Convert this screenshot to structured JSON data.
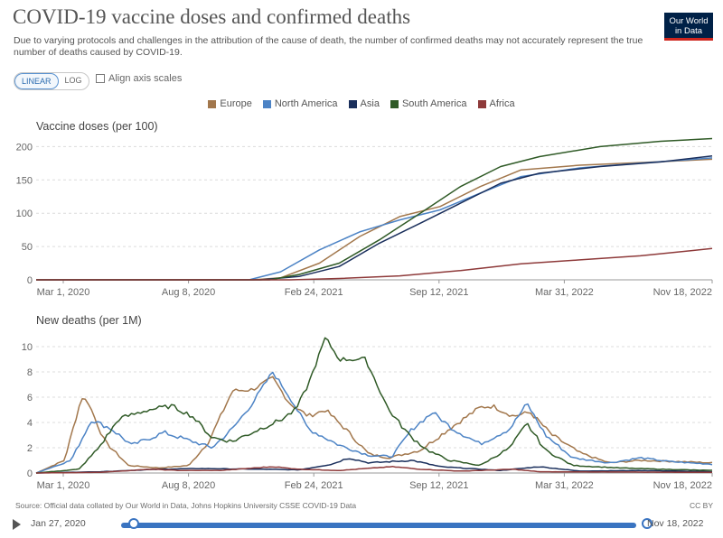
{
  "header": {
    "title": "COVID-19 vaccine doses and confirmed deaths",
    "subtitle": "Due to varying protocols and challenges in the attribution of the cause of death, the number of confirmed deaths may not accurately represent the true number of deaths caused by COVID-19.",
    "logo_line1": "Our World",
    "logo_line2": "in Data"
  },
  "controls": {
    "linear_label": "LINEAR",
    "log_label": "LOG",
    "align_label": "Align axis scales"
  },
  "colors": {
    "Europe": "#a2774c",
    "North America": "#4c83c5",
    "Asia": "#1a2f5c",
    "South America": "#2f5a26",
    "Africa": "#8e3a3a"
  },
  "legend": [
    "Europe",
    "North America",
    "Asia",
    "South America",
    "Africa"
  ],
  "chart_data": [
    {
      "type": "line",
      "title": "Vaccine doses (per 100)",
      "x_tick_labels": [
        "Mar 1, 2020",
        "Aug 8, 2020",
        "Feb 24, 2021",
        "Sep 12, 2021",
        "Mar 31, 2022",
        "Nov 18, 2022"
      ],
      "y_ticks": [
        0,
        50,
        100,
        150,
        200
      ],
      "ylim": [
        0,
        210
      ],
      "xlim": [
        "2020-01-27",
        "2022-11-18"
      ],
      "grid": true,
      "series": [
        {
          "name": "Europe",
          "points": [
            [
              "2020-12-20",
              0
            ],
            [
              "2021-02-01",
              3
            ],
            [
              "2021-04-01",
              25
            ],
            [
              "2021-06-01",
              65
            ],
            [
              "2021-08-01",
              95
            ],
            [
              "2021-10-01",
              110
            ],
            [
              "2021-12-01",
              140
            ],
            [
              "2022-02-01",
              165
            ],
            [
              "2022-05-01",
              172
            ],
            [
              "2022-08-01",
              176
            ],
            [
              "2022-11-18",
              181
            ]
          ]
        },
        {
          "name": "North America",
          "points": [
            [
              "2020-12-15",
              0
            ],
            [
              "2021-02-01",
              12
            ],
            [
              "2021-04-01",
              45
            ],
            [
              "2021-06-01",
              72
            ],
            [
              "2021-08-01",
              90
            ],
            [
              "2021-10-01",
              105
            ],
            [
              "2021-12-01",
              130
            ],
            [
              "2022-02-01",
              155
            ],
            [
              "2022-05-01",
              168
            ],
            [
              "2022-08-01",
              175
            ],
            [
              "2022-11-18",
              183
            ]
          ]
        },
        {
          "name": "Asia",
          "points": [
            [
              "2021-01-01",
              0
            ],
            [
              "2021-03-01",
              5
            ],
            [
              "2021-05-01",
              20
            ],
            [
              "2021-07-01",
              55
            ],
            [
              "2021-09-01",
              85
            ],
            [
              "2021-11-01",
              115
            ],
            [
              "2022-01-01",
              145
            ],
            [
              "2022-03-01",
              160
            ],
            [
              "2022-06-01",
              170
            ],
            [
              "2022-09-01",
              177
            ],
            [
              "2022-11-18",
              186
            ]
          ]
        },
        {
          "name": "South America",
          "points": [
            [
              "2021-01-15",
              0
            ],
            [
              "2021-03-01",
              8
            ],
            [
              "2021-05-01",
              25
            ],
            [
              "2021-07-01",
              60
            ],
            [
              "2021-09-01",
              100
            ],
            [
              "2021-11-01",
              140
            ],
            [
              "2022-01-01",
              170
            ],
            [
              "2022-03-01",
              185
            ],
            [
              "2022-06-01",
              200
            ],
            [
              "2022-09-01",
              208
            ],
            [
              "2022-11-18",
              212
            ]
          ]
        },
        {
          "name": "Africa",
          "points": [
            [
              "2021-02-15",
              0
            ],
            [
              "2021-05-01",
              2
            ],
            [
              "2021-08-01",
              6
            ],
            [
              "2021-11-01",
              14
            ],
            [
              "2022-02-01",
              24
            ],
            [
              "2022-05-01",
              30
            ],
            [
              "2022-08-01",
              36
            ],
            [
              "2022-11-18",
              47
            ]
          ]
        }
      ]
    },
    {
      "type": "line",
      "title": "New deaths (per 1M)",
      "x_tick_labels": [
        "Mar 1, 2020",
        "Aug 8, 2020",
        "Feb 24, 2021",
        "Sep 12, 2021",
        "Mar 31, 2022",
        "Nov 18, 2022"
      ],
      "y_ticks": [
        0,
        2,
        4,
        6,
        8,
        10
      ],
      "ylim": [
        0,
        11
      ],
      "xlim": [
        "2020-01-27",
        "2022-11-18"
      ],
      "grid": true,
      "series": [
        {
          "name": "Europe",
          "points": [
            [
              "2020-01-27",
              0
            ],
            [
              "2020-03-10",
              1.0
            ],
            [
              "2020-04-05",
              6.0
            ],
            [
              "2020-04-15",
              5.6
            ],
            [
              "2020-05-10",
              2.5
            ],
            [
              "2020-06-15",
              0.6
            ],
            [
              "2020-08-01",
              0.4
            ],
            [
              "2020-09-15",
              0.6
            ],
            [
              "2020-10-15",
              2.5
            ],
            [
              "2020-11-20",
              6.5
            ],
            [
              "2020-12-20",
              6.6
            ],
            [
              "2021-01-20",
              7.5
            ],
            [
              "2021-02-15",
              5.5
            ],
            [
              "2021-03-15",
              4.5
            ],
            [
              "2021-04-10",
              5.0
            ],
            [
              "2021-05-10",
              3.5
            ],
            [
              "2021-06-15",
              1.5
            ],
            [
              "2021-07-15",
              1.2
            ],
            [
              "2021-09-01",
              1.8
            ],
            [
              "2021-10-15",
              3.5
            ],
            [
              "2021-12-01",
              5.2
            ],
            [
              "2021-12-20",
              5.3
            ],
            [
              "2022-01-20",
              4.5
            ],
            [
              "2022-02-15",
              4.8
            ],
            [
              "2022-03-20",
              3.0
            ],
            [
              "2022-05-01",
              1.6
            ],
            [
              "2022-06-15",
              0.8
            ],
            [
              "2022-08-01",
              1.0
            ],
            [
              "2022-10-01",
              0.9
            ],
            [
              "2022-11-18",
              0.8
            ]
          ]
        },
        {
          "name": "North America",
          "points": [
            [
              "2020-01-27",
              0
            ],
            [
              "2020-03-20",
              1.0
            ],
            [
              "2020-04-20",
              4.2
            ],
            [
              "2020-05-20",
              3.5
            ],
            [
              "2020-06-20",
              2.2
            ],
            [
              "2020-08-08",
              3.2
            ],
            [
              "2020-09-20",
              2.5
            ],
            [
              "2020-10-20",
              2.0
            ],
            [
              "2020-11-20",
              3.5
            ],
            [
              "2020-12-20",
              5.5
            ],
            [
              "2021-01-20",
              8.0
            ],
            [
              "2021-02-15",
              6.0
            ],
            [
              "2021-03-15",
              3.5
            ],
            [
              "2021-05-01",
              2.2
            ],
            [
              "2021-06-15",
              1.4
            ],
            [
              "2021-07-20",
              1.3
            ],
            [
              "2021-08-20",
              3.5
            ],
            [
              "2021-09-20",
              4.8
            ],
            [
              "2021-10-20",
              3.5
            ],
            [
              "2021-12-01",
              2.3
            ],
            [
              "2022-01-15",
              3.5
            ],
            [
              "2022-02-10",
              5.5
            ],
            [
              "2022-03-10",
              3.0
            ],
            [
              "2022-04-20",
              1.2
            ],
            [
              "2022-06-15",
              0.8
            ],
            [
              "2022-08-01",
              1.2
            ],
            [
              "2022-09-15",
              0.9
            ],
            [
              "2022-11-18",
              0.7
            ]
          ]
        },
        {
          "name": "Asia",
          "points": [
            [
              "2020-01-27",
              0
            ],
            [
              "2020-05-01",
              0.1
            ],
            [
              "2020-08-01",
              0.3
            ],
            [
              "2020-10-01",
              0.35
            ],
            [
              "2021-01-01",
              0.3
            ],
            [
              "2021-03-01",
              0.25
            ],
            [
              "2021-04-20",
              0.7
            ],
            [
              "2021-05-15",
              1.2
            ],
            [
              "2021-06-15",
              0.8
            ],
            [
              "2021-08-20",
              1.0
            ],
            [
              "2021-10-01",
              0.5
            ],
            [
              "2022-01-01",
              0.2
            ],
            [
              "2022-03-01",
              0.5
            ],
            [
              "2022-05-01",
              0.15
            ],
            [
              "2022-08-01",
              0.2
            ],
            [
              "2022-11-18",
              0.1
            ]
          ]
        },
        {
          "name": "South America",
          "points": [
            [
              "2020-01-27",
              0
            ],
            [
              "2020-04-01",
              0.3
            ],
            [
              "2020-05-01",
              2.0
            ],
            [
              "2020-06-01",
              4.3
            ],
            [
              "2020-07-15",
              5.0
            ],
            [
              "2020-08-20",
              5.3
            ],
            [
              "2020-09-20",
              4.5
            ],
            [
              "2020-10-20",
              2.8
            ],
            [
              "2020-11-20",
              2.5
            ],
            [
              "2021-01-01",
              3.5
            ],
            [
              "2021-02-01",
              4.2
            ],
            [
              "2021-02-24",
              5.0
            ],
            [
              "2021-03-15",
              7.0
            ],
            [
              "2021-04-10",
              10.7
            ],
            [
              "2021-05-01",
              9.0
            ],
            [
              "2021-06-10",
              9.0
            ],
            [
              "2021-07-15",
              5.0
            ],
            [
              "2021-08-15",
              3.0
            ],
            [
              "2021-09-12",
              1.8
            ],
            [
              "2021-10-15",
              1.0
            ],
            [
              "2021-12-01",
              0.6
            ],
            [
              "2022-01-15",
              2.0
            ],
            [
              "2022-02-10",
              3.9
            ],
            [
              "2022-03-10",
              1.8
            ],
            [
              "2022-04-20",
              0.6
            ],
            [
              "2022-07-01",
              0.4
            ],
            [
              "2022-09-01",
              0.3
            ],
            [
              "2022-11-18",
              0.2
            ]
          ]
        },
        {
          "name": "Africa",
          "points": [
            [
              "2020-01-27",
              0
            ],
            [
              "2020-05-01",
              0.05
            ],
            [
              "2020-07-20",
              0.3
            ],
            [
              "2020-09-01",
              0.2
            ],
            [
              "2020-11-01",
              0.2
            ],
            [
              "2021-01-20",
              0.5
            ],
            [
              "2021-03-01",
              0.3
            ],
            [
              "2021-05-01",
              0.2
            ],
            [
              "2021-07-20",
              0.5
            ],
            [
              "2021-09-01",
              0.3
            ],
            [
              "2021-11-01",
              0.15
            ],
            [
              "2022-01-20",
              0.3
            ],
            [
              "2022-03-01",
              0.1
            ],
            [
              "2022-11-18",
              0.05
            ]
          ]
        }
      ]
    }
  ],
  "footer": {
    "source": "Source: Official data collated by Our World in Data, Johns Hopkins University CSSE COVID-19 Data",
    "license": "CC BY"
  },
  "timeline": {
    "start": "Jan 27, 2020",
    "end": "Nov 18, 2022"
  }
}
